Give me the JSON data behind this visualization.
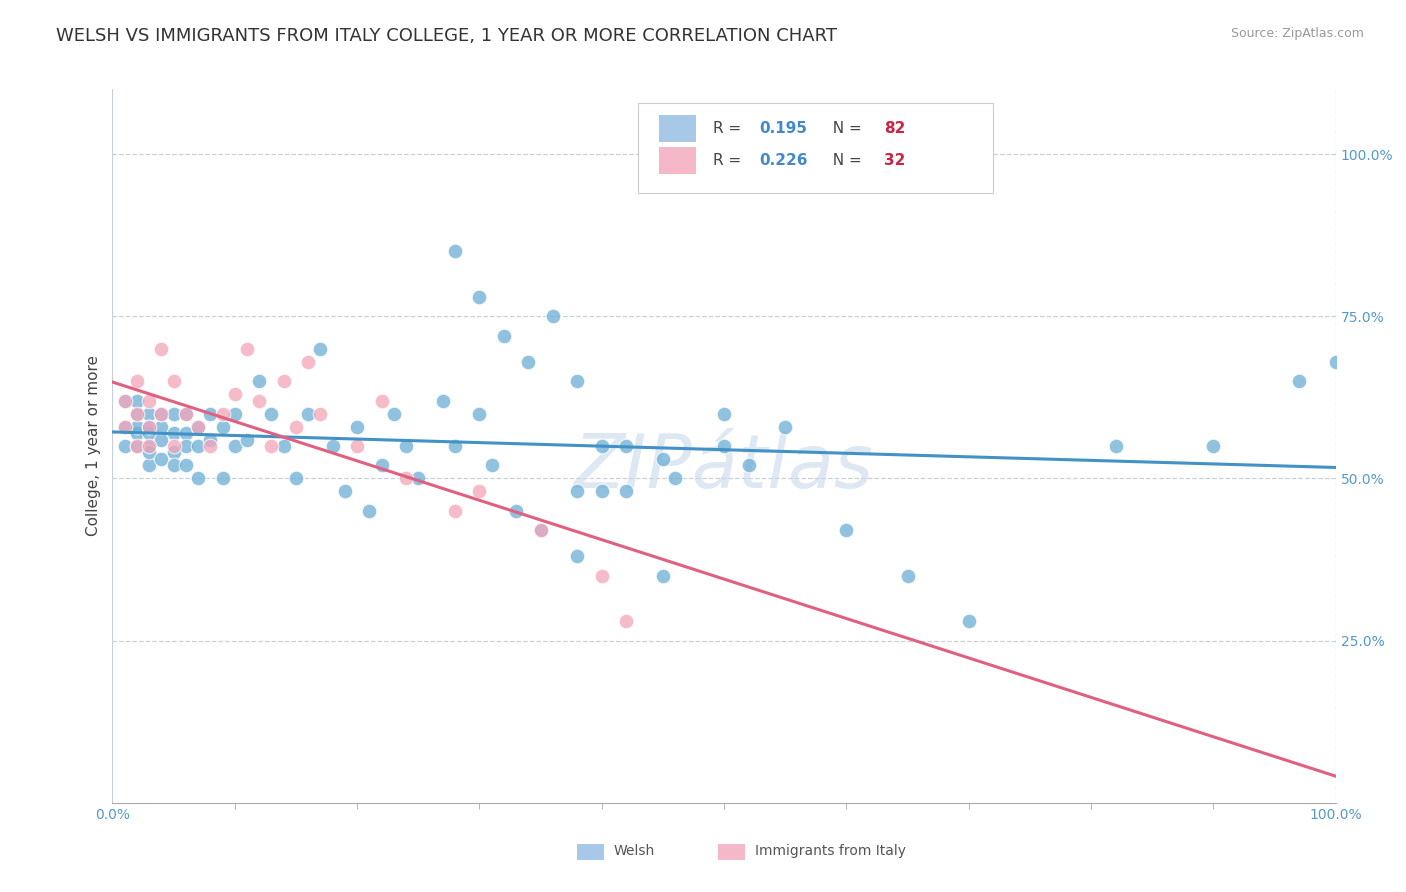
{
  "title": "WELSH VS IMMIGRANTS FROM ITALY COLLEGE, 1 YEAR OR MORE CORRELATION CHART",
  "source": "Source: ZipAtlas.com",
  "ylabel": "College, 1 year or more",
  "y_ticks": [
    0.25,
    0.5,
    0.75,
    1.0
  ],
  "y_tick_labels": [
    "25.0%",
    "50.0%",
    "75.0%",
    "100.0%"
  ],
  "xlim": [
    0.0,
    1.0
  ],
  "ylim": [
    0.0,
    1.1
  ],
  "welsh_R": 0.195,
  "welsh_N": 82,
  "italy_R": 0.226,
  "italy_N": 32,
  "blue_color": "#6baed6",
  "pink_color": "#f4a4b8",
  "blue_line_color": "#4292c6",
  "pink_line_color": "#e06080",
  "legend_box_blue": "#a8c8e8",
  "legend_box_pink": "#f4b8c8",
  "watermark": "ZIPátlas",
  "watermark_color": "#c8d8e8",
  "title_fontsize": 13,
  "axis_label_fontsize": 11,
  "tick_fontsize": 10,
  "welsh_x": [
    0.01,
    0.01,
    0.01,
    0.02,
    0.02,
    0.02,
    0.02,
    0.02,
    0.03,
    0.03,
    0.03,
    0.03,
    0.03,
    0.03,
    0.04,
    0.04,
    0.04,
    0.04,
    0.05,
    0.05,
    0.05,
    0.05,
    0.06,
    0.06,
    0.06,
    0.06,
    0.07,
    0.07,
    0.07,
    0.08,
    0.08,
    0.09,
    0.09,
    0.1,
    0.1,
    0.11,
    0.12,
    0.13,
    0.14,
    0.15,
    0.16,
    0.17,
    0.18,
    0.19,
    0.2,
    0.21,
    0.22,
    0.23,
    0.24,
    0.25,
    0.27,
    0.28,
    0.3,
    0.31,
    0.33,
    0.35,
    0.38,
    0.4,
    0.42,
    0.45,
    0.28,
    0.3,
    0.32,
    0.34,
    0.36,
    0.38,
    0.4,
    0.42,
    0.46,
    0.5,
    0.52,
    0.55,
    0.38,
    0.45,
    0.5,
    0.6,
    0.65,
    0.7,
    0.82,
    0.9,
    0.97,
    1.0
  ],
  "welsh_y": [
    0.55,
    0.58,
    0.62,
    0.55,
    0.57,
    0.6,
    0.62,
    0.58,
    0.55,
    0.57,
    0.6,
    0.52,
    0.58,
    0.54,
    0.56,
    0.58,
    0.6,
    0.53,
    0.57,
    0.6,
    0.54,
    0.52,
    0.57,
    0.6,
    0.55,
    0.52,
    0.58,
    0.55,
    0.5,
    0.56,
    0.6,
    0.58,
    0.5,
    0.6,
    0.55,
    0.56,
    0.65,
    0.6,
    0.55,
    0.5,
    0.6,
    0.7,
    0.55,
    0.48,
    0.58,
    0.45,
    0.52,
    0.6,
    0.55,
    0.5,
    0.62,
    0.55,
    0.6,
    0.52,
    0.45,
    0.42,
    0.48,
    0.55,
    0.48,
    0.53,
    0.85,
    0.78,
    0.72,
    0.68,
    0.75,
    0.65,
    0.48,
    0.55,
    0.5,
    0.6,
    0.52,
    0.58,
    0.38,
    0.35,
    0.55,
    0.42,
    0.35,
    0.28,
    0.55,
    0.55,
    0.65,
    0.68
  ],
  "italy_x": [
    0.01,
    0.01,
    0.02,
    0.02,
    0.02,
    0.03,
    0.03,
    0.03,
    0.04,
    0.04,
    0.05,
    0.05,
    0.06,
    0.07,
    0.08,
    0.09,
    0.1,
    0.11,
    0.12,
    0.13,
    0.14,
    0.15,
    0.16,
    0.17,
    0.2,
    0.22,
    0.24,
    0.28,
    0.3,
    0.35,
    0.4,
    0.42
  ],
  "italy_y": [
    0.58,
    0.62,
    0.55,
    0.6,
    0.65,
    0.55,
    0.58,
    0.62,
    0.6,
    0.7,
    0.55,
    0.65,
    0.6,
    0.58,
    0.55,
    0.6,
    0.63,
    0.7,
    0.62,
    0.55,
    0.65,
    0.58,
    0.68,
    0.6,
    0.55,
    0.62,
    0.5,
    0.45,
    0.48,
    0.42,
    0.35,
    0.28
  ]
}
